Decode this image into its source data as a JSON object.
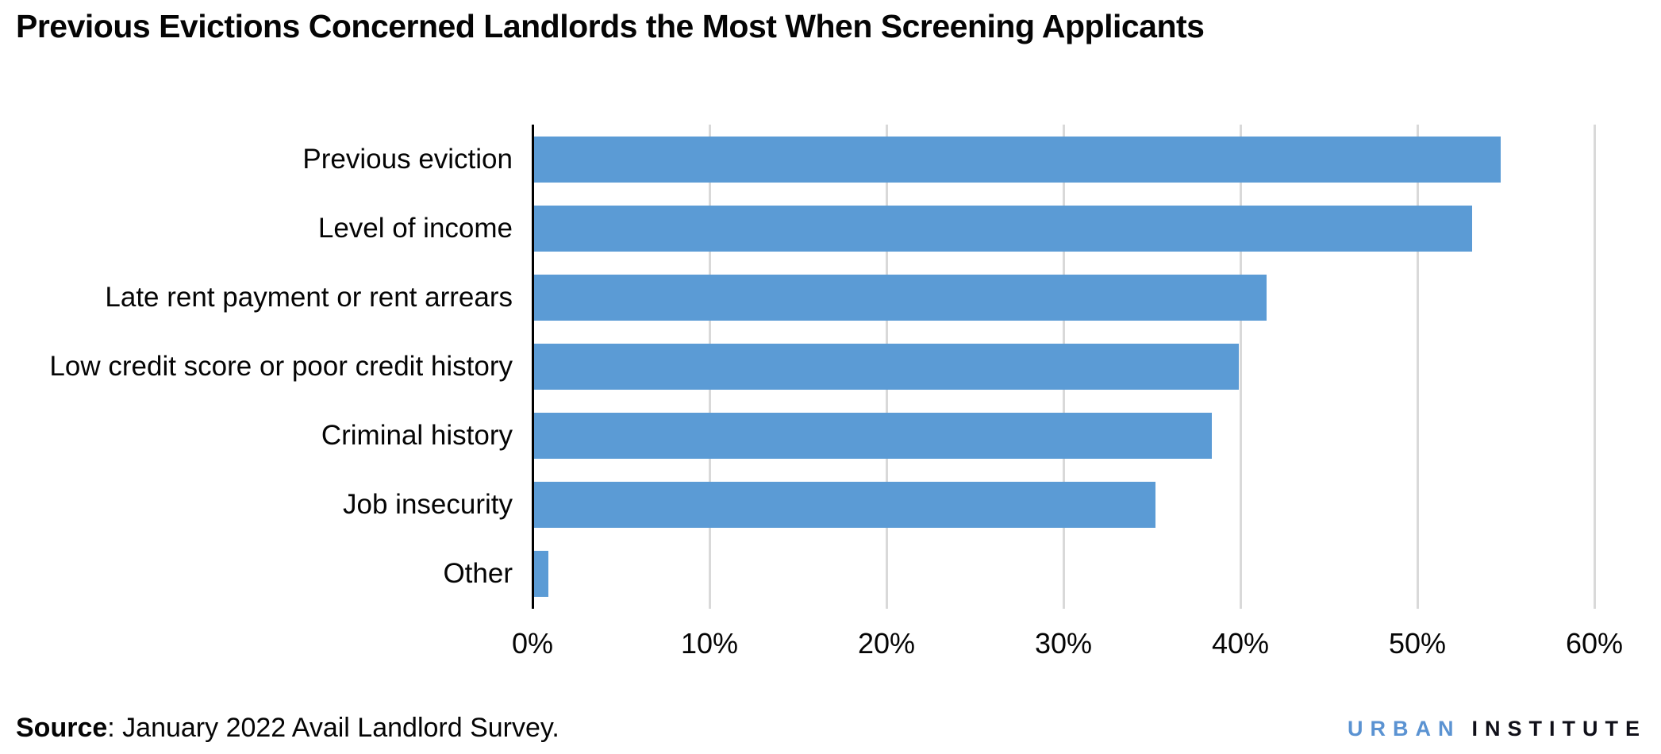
{
  "chart_data": {
    "type": "bar",
    "orientation": "horizontal",
    "title": "Previous Evictions Concerned Landlords the Most When Screening Applicants",
    "categories": [
      "Previous eviction",
      "Level of income",
      "Late rent payment or rent arrears",
      "Low credit score or poor credit history",
      "Criminal history",
      "Job insecurity",
      "Other"
    ],
    "values": [
      54.6,
      53.0,
      41.4,
      39.8,
      38.3,
      35.1,
      0.8
    ],
    "unit": "%",
    "xlabel": "",
    "ylabel": "",
    "xlim": [
      0,
      60
    ],
    "x_tick_values": [
      0,
      10,
      20,
      30,
      40,
      50,
      60
    ],
    "x_tick_labels": [
      "0%",
      "10%",
      "20%",
      "30%",
      "40%",
      "50%",
      "60%"
    ],
    "grid": "vertical gridlines on, horizontal off",
    "legend": "none",
    "bar_color": "#5b9bd5",
    "gridline_color": "#d9d9d9",
    "axis_color": "#000000"
  },
  "source": {
    "label": "Source",
    "separator": ": ",
    "text": "January 2022 Avail Landlord Survey."
  },
  "logo": {
    "word1": "URBAN",
    "word2": "INSTITUTE",
    "word1_color": "#5b93d2",
    "word2_color": "#101019"
  }
}
